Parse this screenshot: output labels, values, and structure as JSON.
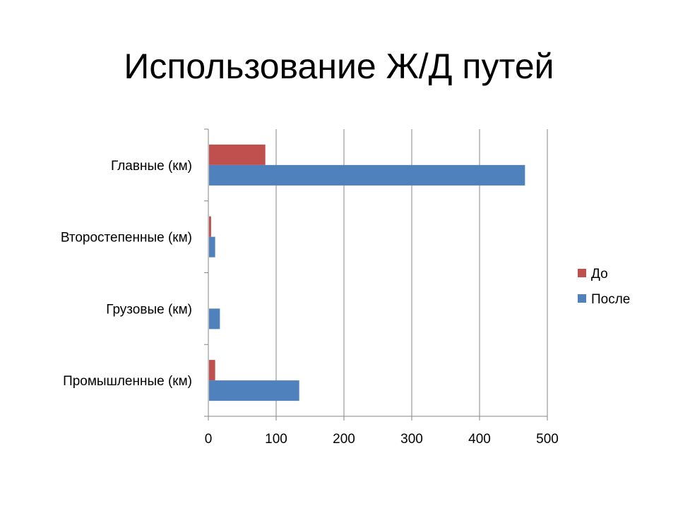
{
  "chart_data": {
    "type": "bar",
    "orientation": "horizontal",
    "title": "Использование Ж/Д путей",
    "xlabel": "",
    "ylabel": "",
    "categories": [
      "Главные (км)",
      "Второстепенные (км)",
      "Грузовые (км)",
      "Промышленные (км)"
    ],
    "series": [
      {
        "name": "До",
        "color": "#C0504D",
        "values": [
          83,
          3,
          0,
          9
        ]
      },
      {
        "name": "После",
        "color": "#4F81BD",
        "values": [
          466,
          9,
          16,
          133
        ]
      }
    ],
    "xlim": [
      0,
      500
    ],
    "xticks": [
      "0",
      "100",
      "200",
      "300",
      "400",
      "500"
    ],
    "grid": "vertical",
    "legend": "right"
  }
}
